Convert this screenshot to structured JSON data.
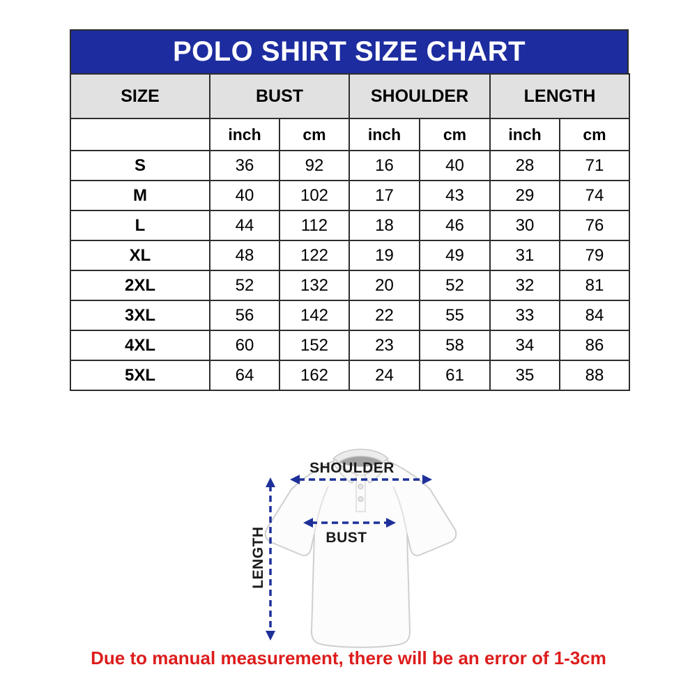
{
  "chart_data": {
    "type": "table",
    "title": "POLO SHIRT SIZE CHART",
    "column_groups": [
      "SIZE",
      "BUST",
      "SHOULDER",
      "LENGTH"
    ],
    "units": [
      "inch",
      "cm",
      "inch",
      "cm",
      "inch",
      "cm"
    ],
    "rows": [
      {
        "size": "S",
        "values": [
          36,
          92,
          16,
          40,
          28,
          71
        ]
      },
      {
        "size": "M",
        "values": [
          40,
          102,
          17,
          43,
          29,
          74
        ]
      },
      {
        "size": "L",
        "values": [
          44,
          112,
          18,
          46,
          30,
          76
        ]
      },
      {
        "size": "XL",
        "values": [
          48,
          122,
          19,
          49,
          31,
          79
        ]
      },
      {
        "size": "2XL",
        "values": [
          52,
          132,
          20,
          52,
          32,
          81
        ]
      },
      {
        "size": "3XL",
        "values": [
          56,
          142,
          22,
          55,
          33,
          84
        ]
      },
      {
        "size": "4XL",
        "values": [
          60,
          152,
          23,
          58,
          34,
          86
        ]
      },
      {
        "size": "5XL",
        "values": [
          64,
          162,
          24,
          61,
          35,
          88
        ]
      }
    ]
  },
  "diagram": {
    "shoulder_label": "SHOULDER",
    "bust_label": "BUST",
    "length_label": "LENGTH"
  },
  "footer_note": "Due to manual measurement, there will be an error of 1-3cm",
  "colors": {
    "title_bar_blue": "#1d2c9f",
    "header_gray": "#e1e1e1",
    "table_border": "#2d2d2d",
    "arrow_blue": "#1d3099",
    "note_red": "#dd1d1d"
  }
}
